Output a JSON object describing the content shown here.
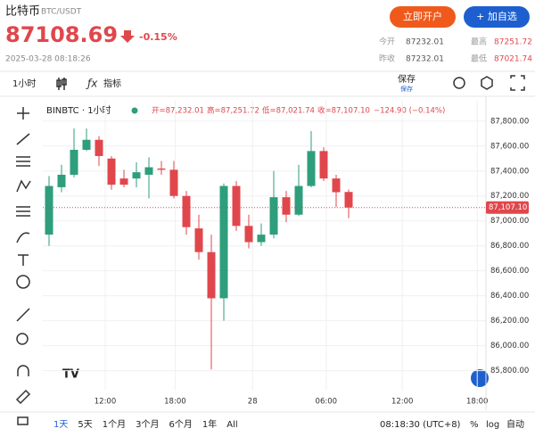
{
  "header": {
    "name": "比特币",
    "symbol": "BTC/USDT",
    "price": "87108.69",
    "change_pct": "-0.15%",
    "datetime": "2025-03-28 08:18:26",
    "buttons": [
      "立即开户",
      "+ 加自选"
    ],
    "stats": [
      {
        "label": "今开",
        "value": "87232.01"
      },
      {
        "label": "最高",
        "value": "87251.72"
      },
      {
        "label": "昨收",
        "value": "87232.01"
      },
      {
        "label": "最低",
        "value": "87021.74"
      }
    ]
  },
  "toolbar": {
    "interval": "1小时",
    "indicators": "指标",
    "save": "保存",
    "save_sub": "保存"
  },
  "chart_data": {
    "type": "candlestick",
    "label": "BINBTC · 1小时",
    "legend": {
      "open": "开=87,232.01",
      "high": "高=87,251.72",
      "low": "低=87,021.74",
      "close": "收=87,107.10",
      "change": "−124.90 (−0.14%)"
    },
    "categories": [
      null,
      null,
      null,
      null,
      null,
      null,
      null,
      null,
      null,
      null,
      null,
      null,
      null,
      null,
      null,
      null,
      null,
      null,
      null,
      null,
      null,
      null,
      null,
      null,
      null
    ],
    "open": [
      86890,
      87270,
      87370,
      87570,
      87650,
      87500,
      87340,
      87340,
      87370,
      87420,
      87410,
      87200,
      86940,
      86750,
      86380,
      87280,
      86960,
      86830,
      86890,
      87190,
      87050,
      87280,
      87560,
      87340,
      87232.01
    ],
    "high": [
      87360,
      87450,
      87740,
      87740,
      87680,
      87520,
      87410,
      87470,
      87510,
      87480,
      87480,
      87240,
      87050,
      86890,
      87300,
      87320,
      87050,
      86980,
      87400,
      87240,
      87450,
      87720,
      87590,
      87370,
      87251.72
    ],
    "low": [
      86800,
      87230,
      87350,
      87560,
      87440,
      87250,
      87270,
      87270,
      87180,
      87370,
      87180,
      86890,
      86690,
      85810,
      86200,
      86920,
      86780,
      86800,
      86860,
      86990,
      87040,
      87270,
      87320,
      87110,
      87021.74
    ],
    "close": [
      87280,
      87370,
      87570,
      87650,
      87520,
      87290,
      87290,
      87390,
      87430,
      87410,
      87200,
      86950,
      86750,
      86380,
      87280,
      86960,
      86830,
      86890,
      87190,
      87050,
      87280,
      87560,
      87340,
      87230,
      87107.1
    ],
    "up_color": "#2e9e7c",
    "down_color": "#e0474c",
    "xlim": [
      -0.5,
      35
    ],
    "xticks": [
      {
        "value": 4.5,
        "label": "12:00"
      },
      {
        "value": 10.1,
        "label": "18:00"
      },
      {
        "value": 16.3,
        "label": "28"
      },
      {
        "value": 22.2,
        "label": "06:00"
      },
      {
        "value": 28.3,
        "label": "12:00"
      },
      {
        "value": 34.3,
        "label": "18:00"
      }
    ],
    "ylim": [
      85640,
      87970
    ],
    "yticks": [
      {
        "value": 85800,
        "label": "85,800.00"
      },
      {
        "value": 86000,
        "label": "86,000.00"
      },
      {
        "value": 86200,
        "label": "86,200.00"
      },
      {
        "value": 86400,
        "label": "86,400.00"
      },
      {
        "value": 86600,
        "label": "86,600.00"
      },
      {
        "value": 86800,
        "label": "86,800.00"
      },
      {
        "value": 87000,
        "label": "87,000.00"
      },
      {
        "value": 87200,
        "label": "87,200.00"
      },
      {
        "value": 87400,
        "label": "87,400.00"
      },
      {
        "value": 87600,
        "label": "87,600.00"
      },
      {
        "value": 87800,
        "label": "87,800.00"
      }
    ],
    "last_price": {
      "value": 87107.1,
      "label": "87,107.10"
    },
    "grid": true
  },
  "ranges": [
    "1天",
    "5天",
    "1个月",
    "3个月",
    "6个月",
    "1年",
    "All"
  ],
  "footer": {
    "time": "08:18:30 (UTC+8)",
    "pct": "%",
    "log": "log",
    "auto": "自动"
  }
}
